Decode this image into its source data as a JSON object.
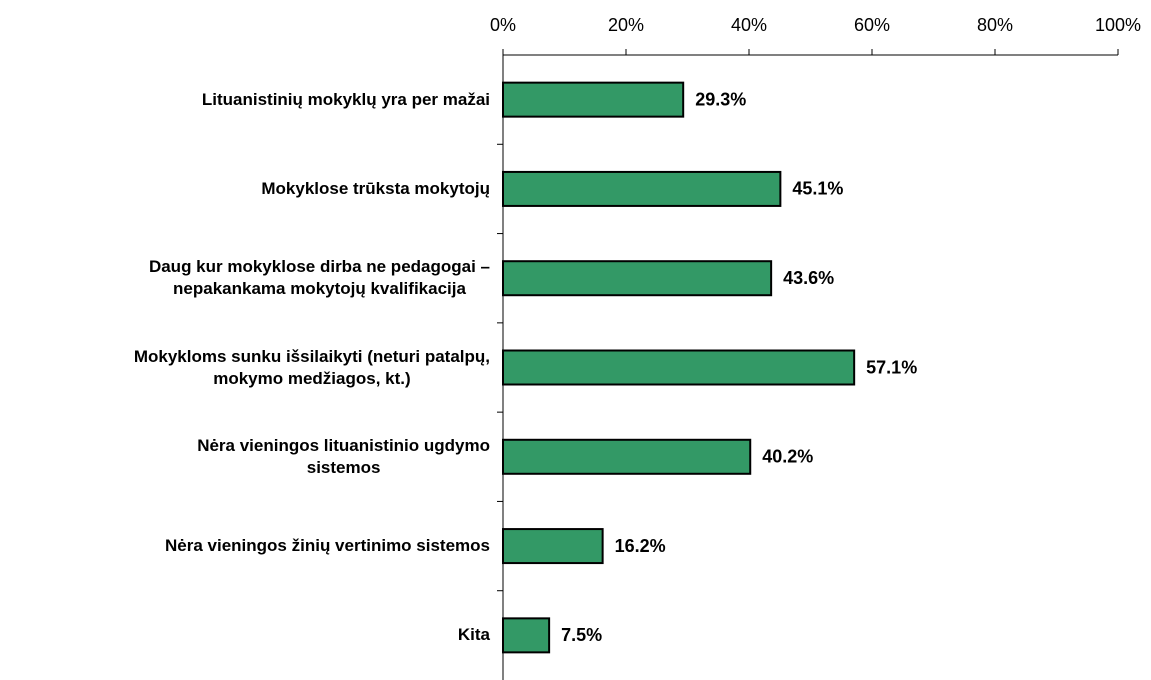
{
  "chart_data": {
    "type": "bar",
    "orientation": "horizontal",
    "categories": [
      "Lituanistinių mokyklų yra per mažai",
      "Mokyklose trūksta mokytojų",
      "Daug kur mokyklose dirba ne pedagogai –\nnepakankama mokytojų kvalifikacija",
      "Mokykloms sunku išsilaikyti (neturi patalpų,\nmokymo medžiagos, kt.)",
      "Nėra vieningos lituanistinio ugdymo\nsistemos",
      "Nėra vieningos žinių vertinimo sistemos",
      "Kita"
    ],
    "values": [
      29.3,
      45.1,
      43.6,
      57.1,
      40.2,
      16.2,
      7.5
    ],
    "value_labels": [
      "29.3%",
      "45.1%",
      "43.6%",
      "57.1%",
      "40.2%",
      "16.2%",
      "7.5%"
    ],
    "color": "#339966",
    "xlim": [
      0,
      100
    ],
    "xticks": [
      {
        "value": 0,
        "label": "0%"
      },
      {
        "value": 20,
        "label": "20%"
      },
      {
        "value": 40,
        "label": "40%"
      },
      {
        "value": 60,
        "label": "60%"
      },
      {
        "value": 80,
        "label": "80%"
      },
      {
        "value": 100,
        "label": "100%"
      }
    ]
  }
}
